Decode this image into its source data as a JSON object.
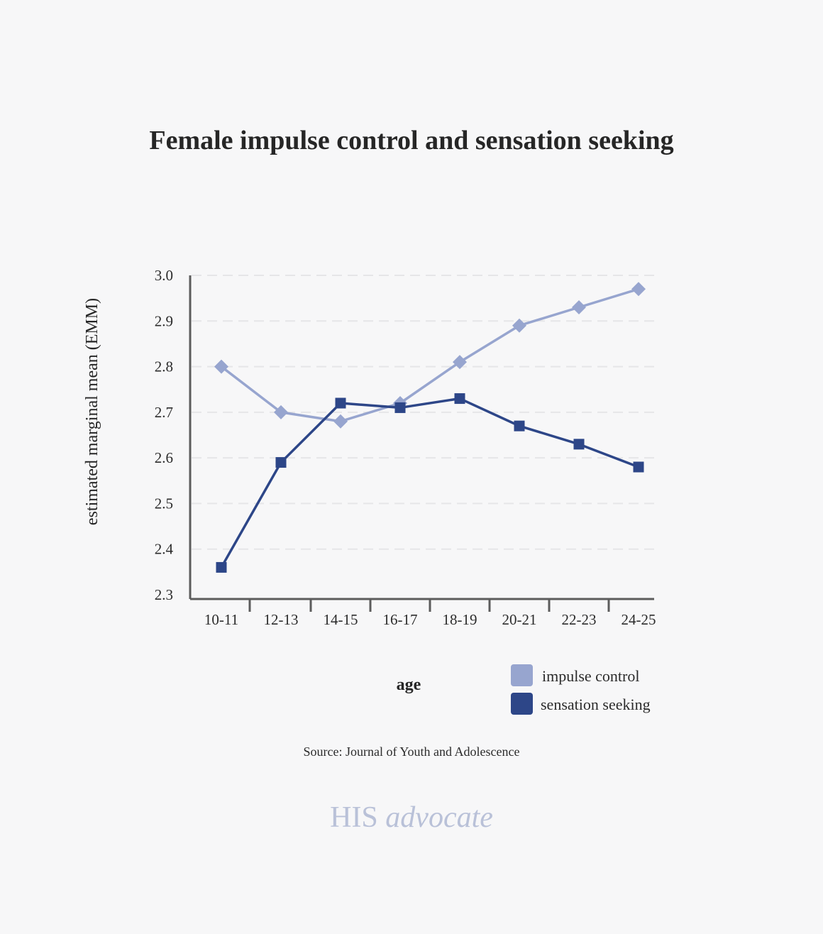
{
  "chart_data": {
    "type": "line",
    "title": "Female impulse control and sensation seeking",
    "xlabel": "age",
    "ylabel": "estimated marginal mean (EMM)",
    "categories": [
      "10-11",
      "12-13",
      "14-15",
      "16-17",
      "18-19",
      "20-21",
      "22-23",
      "24-25"
    ],
    "ylim": [
      2.3,
      3.0
    ],
    "yticks": [
      "3.0",
      "2.9",
      "2.8",
      "2.7",
      "2.6",
      "2.5",
      "2.4",
      "2.3"
    ],
    "grid": true,
    "legend_position": "bottom-right",
    "series": [
      {
        "name": "impulse control",
        "color": "#97a5cf",
        "marker": "diamond",
        "values": [
          2.8,
          2.7,
          2.68,
          2.72,
          2.81,
          2.89,
          2.93,
          2.97
        ]
      },
      {
        "name": "sensation seeking",
        "color": "#2d4688",
        "marker": "square",
        "values": [
          2.36,
          2.59,
          2.72,
          2.71,
          2.73,
          2.67,
          2.63,
          2.58
        ]
      }
    ]
  },
  "footer": {
    "source": "Source: Journal of Youth and Adolescence",
    "brand_main": "HIS",
    "brand_italic": "advocate"
  }
}
